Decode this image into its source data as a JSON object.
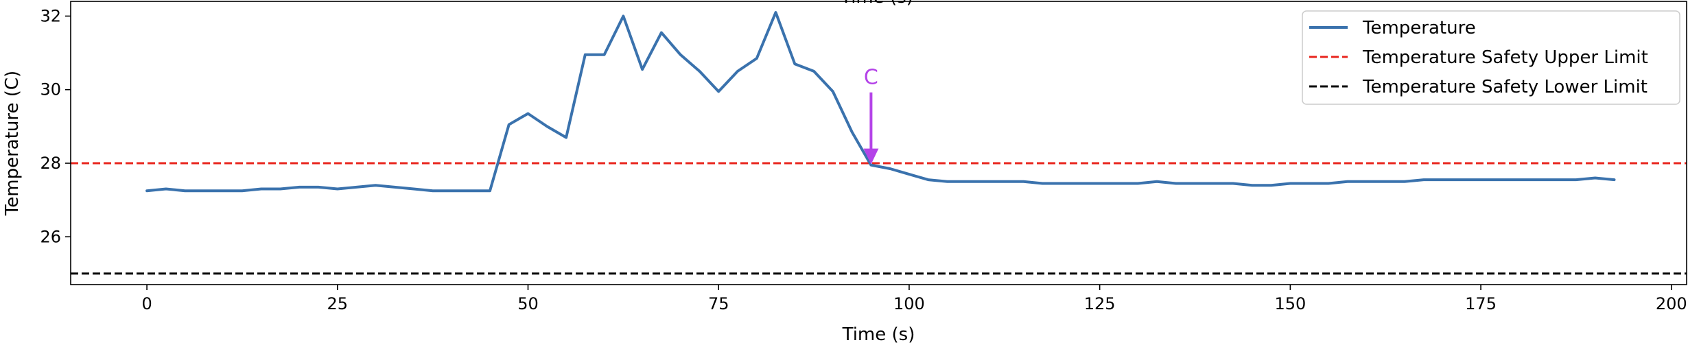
{
  "chart_data": {
    "type": "line",
    "title": "",
    "xlabel": "Time (s)",
    "ylabel": "Temperature (C)",
    "xlim": [
      -10,
      202
    ],
    "ylim": [
      24.7,
      32.4
    ],
    "xticks": [
      0,
      25,
      50,
      75,
      100,
      125,
      150,
      175,
      200
    ],
    "yticks": [
      26,
      28,
      30,
      32
    ],
    "grid": false,
    "legend_position": "top-right",
    "series": [
      {
        "name": "Temperature",
        "color": "#3a72ad",
        "style": "solid",
        "x": [
          0,
          2.5,
          5,
          7.5,
          10,
          12.5,
          15,
          17.5,
          20,
          22.5,
          25,
          27.5,
          30,
          32.5,
          35,
          37.5,
          40,
          42.5,
          45,
          47.5,
          50,
          52.5,
          55,
          57.5,
          60,
          62.5,
          65,
          67.5,
          70,
          72.5,
          75,
          77.5,
          80,
          82.5,
          85,
          87.5,
          90,
          92.5,
          95,
          97.5,
          100,
          102.5,
          105,
          107.5,
          110,
          112.5,
          115,
          117.5,
          120,
          122.5,
          125,
          127.5,
          130,
          132.5,
          135,
          137.5,
          140,
          142.5,
          145,
          147.5,
          150,
          152.5,
          155,
          157.5,
          160,
          162.5,
          165,
          167.5,
          170,
          172.5,
          175,
          177.5,
          180,
          182.5,
          185,
          187.5,
          190,
          192.5
        ],
        "y": [
          27.25,
          27.3,
          27.25,
          27.25,
          27.25,
          27.25,
          27.3,
          27.3,
          27.35,
          27.35,
          27.3,
          27.35,
          27.4,
          27.35,
          27.3,
          27.25,
          27.25,
          27.25,
          27.25,
          29.05,
          29.35,
          29.0,
          28.7,
          30.95,
          30.95,
          32.0,
          30.55,
          31.55,
          30.95,
          30.5,
          29.95,
          30.5,
          30.85,
          32.1,
          30.7,
          30.5,
          29.95,
          28.85,
          27.95,
          27.85,
          27.7,
          27.55,
          27.5,
          27.5,
          27.5,
          27.5,
          27.5,
          27.45,
          27.45,
          27.45,
          27.45,
          27.45,
          27.45,
          27.5,
          27.45,
          27.45,
          27.45,
          27.45,
          27.4,
          27.4,
          27.45,
          27.45,
          27.45,
          27.5,
          27.5,
          27.5,
          27.5,
          27.55,
          27.55,
          27.55,
          27.55,
          27.55,
          27.55,
          27.55,
          27.55,
          27.55,
          27.6,
          27.55
        ]
      },
      {
        "name": "Temperature Safety Upper Limit",
        "color": "#e8251d",
        "style": "dashed",
        "y_constant": 28
      },
      {
        "name": "Temperature Safety Lower Limit",
        "color": "#000000",
        "style": "dashed",
        "y_constant": 25
      }
    ],
    "annotations": [
      {
        "text": "C",
        "x": 95,
        "y": 27.95,
        "text_y": 30.0,
        "color": "#b443e8"
      }
    ],
    "partial_top_text": "Time (s)"
  }
}
